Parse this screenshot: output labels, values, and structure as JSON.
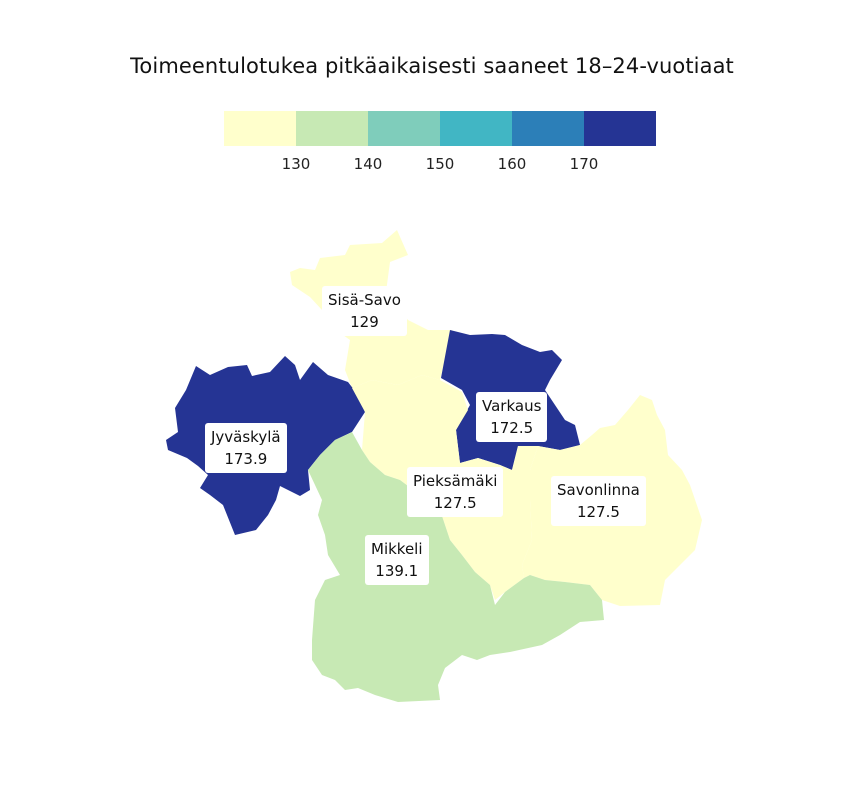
{
  "title": "Toimeentulotukea pitkäaikaisesti saaneet 18–24-vuotiaat",
  "legend": {
    "colors": [
      "#ffffcc",
      "#c7e9b4",
      "#7fcdbb",
      "#41b6c4",
      "#2c7fb8",
      "#253494"
    ],
    "ticks": [
      "130",
      "140",
      "150",
      "160",
      "170"
    ]
  },
  "regions": [
    {
      "name": "Sisä-Savo",
      "value": "129",
      "color": "#ffffcc"
    },
    {
      "name": "Varkaus",
      "value": "172.5",
      "color": "#253494"
    },
    {
      "name": "Jyväskylä",
      "value": "173.9",
      "color": "#253494"
    },
    {
      "name": "Pieksämäki",
      "value": "127.5",
      "color": "#ffffcc"
    },
    {
      "name": "Savonlinna",
      "value": "127.5",
      "color": "#ffffcc"
    },
    {
      "name": "Mikkeli",
      "value": "139.1",
      "color": "#c7e9b4"
    }
  ]
}
